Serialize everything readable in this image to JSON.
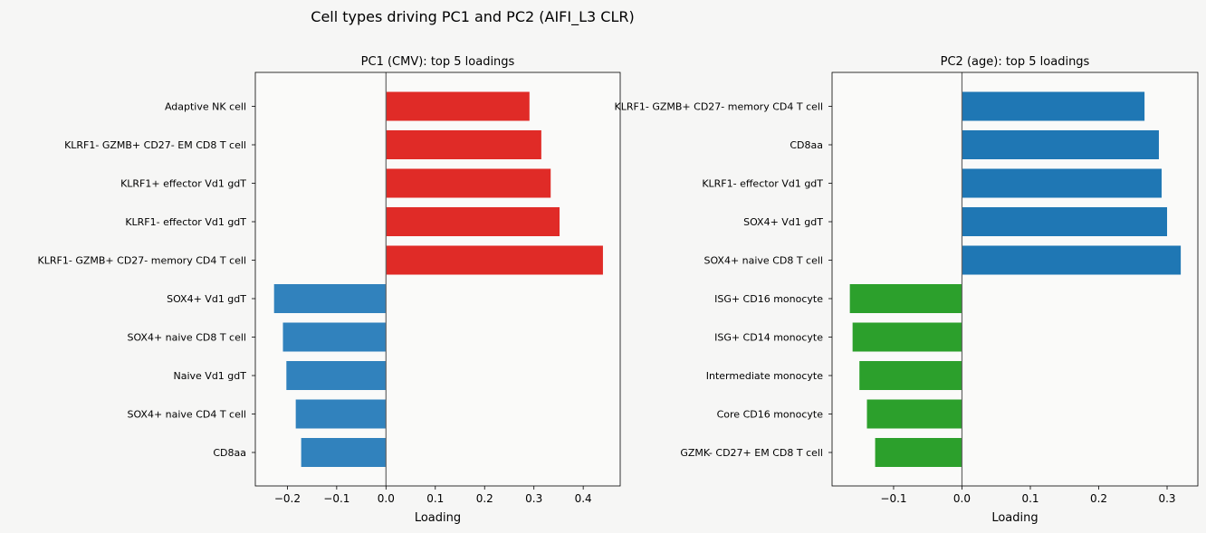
{
  "figure_title": "Cell types driving PC1 and PC2 (AIFI_L3 CLR)",
  "colors": {
    "figure_background": "#f6f6f5",
    "axes_background": "#fafaf9",
    "zero_line": "#666666",
    "pc1_positive": "#e02b27",
    "pc1_negative": "#3182bd",
    "pc2_positive": "#1f77b4",
    "pc2_negative": "#2ca02c"
  },
  "chart_data": [
    {
      "type": "bar",
      "orientation": "horizontal",
      "title": "PC1 (CMV): top 5 loadings",
      "xlabel": "Loading",
      "ylabel": "",
      "xlim": [
        -0.265,
        0.475
      ],
      "xticks": [
        -0.2,
        -0.1,
        0.0,
        0.1,
        0.2,
        0.3,
        0.4
      ],
      "xtick_labels": [
        "−0.2",
        "−0.1",
        "0.0",
        "0.1",
        "0.2",
        "0.3",
        "0.4"
      ],
      "grid": false,
      "bars": [
        {
          "label": "Adaptive NK cell",
          "value": 0.291,
          "color": "#e02b27"
        },
        {
          "label": "KLRF1- GZMB+ CD27- EM CD8 T cell",
          "value": 0.315,
          "color": "#e02b27"
        },
        {
          "label": "KLRF1+ effector Vd1 gdT",
          "value": 0.334,
          "color": "#e02b27"
        },
        {
          "label": "KLRF1- effector Vd1 gdT",
          "value": 0.352,
          "color": "#e02b27"
        },
        {
          "label": "KLRF1- GZMB+ CD27- memory CD4 T cell",
          "value": 0.44,
          "color": "#e02b27"
        },
        {
          "label": "SOX4+ Vd1 gdT",
          "value": -0.227,
          "color": "#3182bd"
        },
        {
          "label": "SOX4+ naive CD8 T cell",
          "value": -0.209,
          "color": "#3182bd"
        },
        {
          "label": "Naive Vd1 gdT",
          "value": -0.202,
          "color": "#3182bd"
        },
        {
          "label": "SOX4+ naive CD4 T cell",
          "value": -0.183,
          "color": "#3182bd"
        },
        {
          "label": "CD8aa",
          "value": -0.172,
          "color": "#3182bd"
        }
      ]
    },
    {
      "type": "bar",
      "orientation": "horizontal",
      "title": "PC2 (age): top 5 loadings",
      "xlabel": "Loading",
      "ylabel": "",
      "xlim": [
        -0.19,
        0.345
      ],
      "xticks": [
        -0.1,
        0.0,
        0.1,
        0.2,
        0.3
      ],
      "xtick_labels": [
        "−0.1",
        "0.0",
        "0.1",
        "0.2",
        "0.3"
      ],
      "grid": false,
      "bars": [
        {
          "label": "KLRF1- GZMB+ CD27- memory CD4 T cell",
          "value": 0.267,
          "color": "#1f77b4"
        },
        {
          "label": "CD8aa",
          "value": 0.288,
          "color": "#1f77b4"
        },
        {
          "label": "KLRF1- effector Vd1 gdT",
          "value": 0.292,
          "color": "#1f77b4"
        },
        {
          "label": "SOX4+ Vd1 gdT",
          "value": 0.3,
          "color": "#1f77b4"
        },
        {
          "label": "SOX4+ naive CD8 T cell",
          "value": 0.32,
          "color": "#1f77b4"
        },
        {
          "label": "ISG+ CD16 monocyte",
          "value": -0.164,
          "color": "#2ca02c"
        },
        {
          "label": "ISG+ CD14 monocyte",
          "value": -0.16,
          "color": "#2ca02c"
        },
        {
          "label": "Intermediate monocyte",
          "value": -0.15,
          "color": "#2ca02c"
        },
        {
          "label": "Core CD16 monocyte",
          "value": -0.139,
          "color": "#2ca02c"
        },
        {
          "label": "GZMK- CD27+ EM CD8 T cell",
          "value": -0.127,
          "color": "#2ca02c"
        }
      ]
    }
  ]
}
